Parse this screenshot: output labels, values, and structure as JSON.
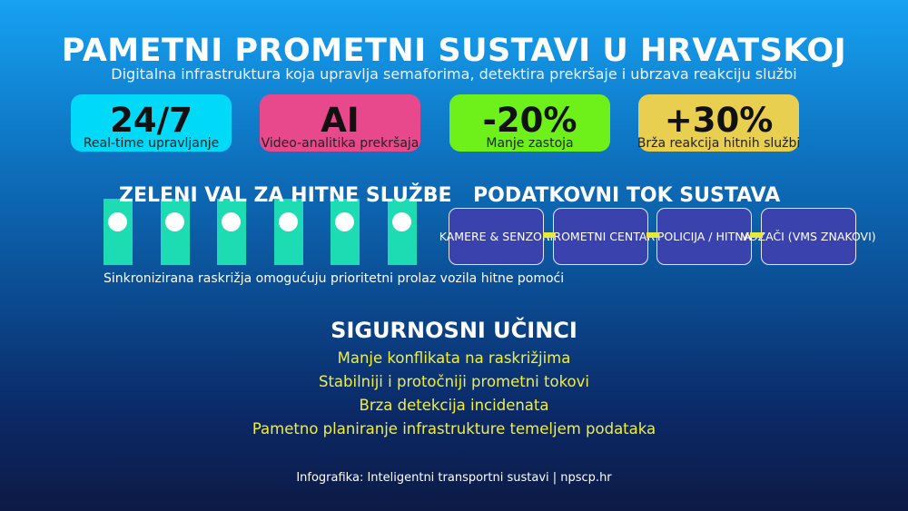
{
  "title": "PAMETNI PROMETNI SUSTAVI U HRVATSKOJ",
  "subtitle": "Digitalna infrastruktura koja upravlja semaforima, detektira prekršaje i ubrzava reakciju službi",
  "stats": [
    {
      "value": "24/7",
      "label": "Real-time upravljanje",
      "color": "#00d9f7"
    },
    {
      "value": "AI",
      "label": "Video-analitika prekršaja",
      "color": "#e8498c"
    },
    {
      "value": "-20%",
      "label": "Manje zastoja",
      "color": "#6ef01a"
    },
    {
      "value": "+30%",
      "label": "Brža reakcija hitnih službi",
      "color": "#e8cf50"
    }
  ],
  "green_wave": {
    "title": "ZELENI VAL ZA HITNE SLUŽBE",
    "caption": "Sinkronizirana raskrižja omogućuju prioritetni prolaz vozila hitne pomoći",
    "signal_count": 6
  },
  "data_flow": {
    "title": "PODATKOVNI TOK SUSTAVA",
    "steps": [
      "KAMERE & SENZORI",
      "PROMETNI CENTAR",
      "POLICIJA / HITNA",
      "VOZAČI (VMS ZNAKOVI)"
    ]
  },
  "safety": {
    "title": "SIGURNOSNI UČINCI",
    "items": [
      "Manje konflikata na raskrižjima",
      "Stabilniji i protočniji prometni tokovi",
      "Brza detekcija incidenata",
      "Pametno planiranje infrastrukture temeljem podataka"
    ]
  },
  "footer": "Infografika: Inteligentni transportni sustavi | npscp.hr"
}
